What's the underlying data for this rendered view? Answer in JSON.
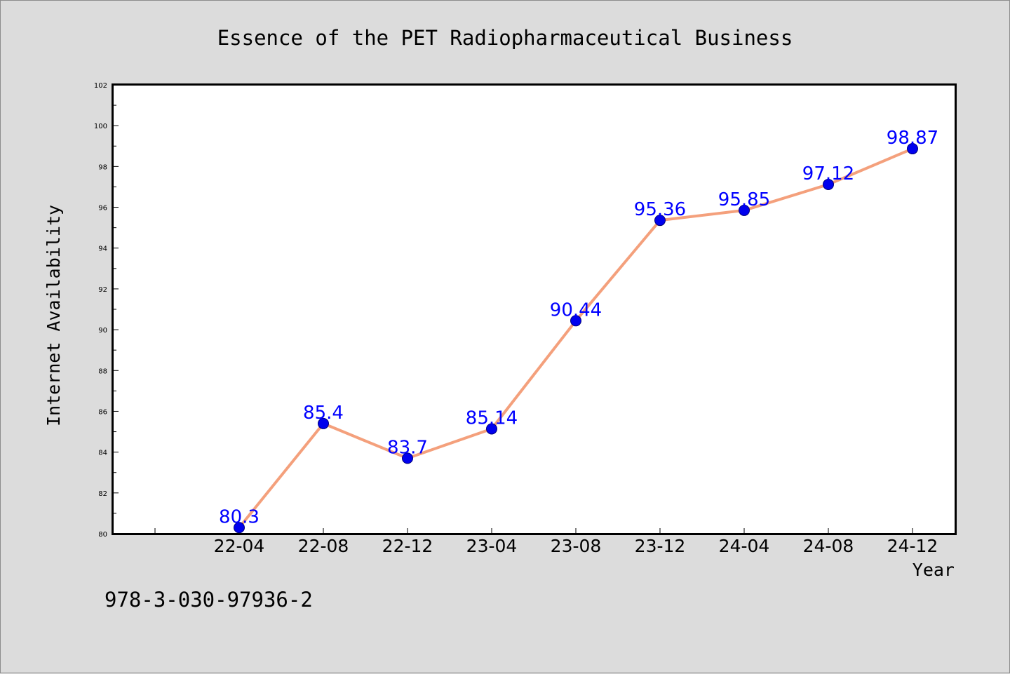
{
  "chart_data": {
    "type": "line",
    "title": "Essence of the PET Radiopharmaceutical Business",
    "xlabel": "Year",
    "ylabel": "Internet Availability",
    "categories": [
      "22-04",
      "22-08",
      "22-12",
      "23-04",
      "23-08",
      "23-12",
      "24-04",
      "24-08",
      "24-12"
    ],
    "values": [
      80.3,
      85.4,
      83.7,
      85.14,
      90.44,
      95.36,
      95.85,
      97.12,
      98.87
    ],
    "data_labels": [
      "80.3",
      "85.4",
      "83.7",
      "85.14",
      "90.44",
      "95.36",
      "95.85",
      "97.12",
      "98.87"
    ],
    "ylim": [
      80,
      102
    ],
    "yticks": [
      80,
      82,
      84,
      86,
      88,
      90,
      92,
      94,
      96,
      98,
      100,
      102
    ],
    "grid": false,
    "legend": "none",
    "colors": {
      "line": "#f4a07c",
      "marker": "#0000ee",
      "marker_edge": "#00007a",
      "label": "#0000ff",
      "background": "#dcdcdc",
      "plot_background": "#ffffff"
    }
  },
  "footer": {
    "isbn": "978-3-030-97936-2"
  }
}
